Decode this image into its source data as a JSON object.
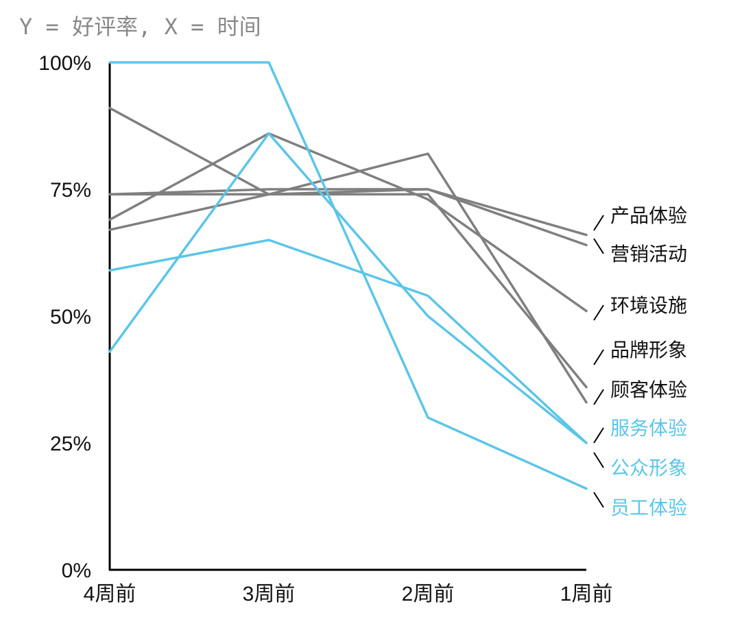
{
  "chart_data": {
    "type": "line",
    "title": "Y = 好评率, X = 时间",
    "xlabel": "时间",
    "ylabel": "好评率",
    "categories": [
      "4周前",
      "3周前",
      "2周前",
      "1周前"
    ],
    "y_ticks": [
      "0%",
      "25%",
      "50%",
      "75%",
      "100%"
    ],
    "ylim": [
      0,
      100
    ],
    "grid": false,
    "legend": "direct labels at right end of lines",
    "series": [
      {
        "name": "产品体验",
        "color": "#7f7f7f",
        "values": [
          67,
          74,
          75,
          66
        ]
      },
      {
        "name": "营销活动",
        "color": "#7f7f7f",
        "values": [
          74,
          75,
          75,
          64
        ]
      },
      {
        "name": "环境设施",
        "color": "#7f7f7f",
        "values": [
          69,
          86,
          73,
          51
        ]
      },
      {
        "name": "品牌形象",
        "color": "#7f7f7f",
        "values": [
          91,
          74,
          74,
          36
        ]
      },
      {
        "name": "顾客体验",
        "color": "#7f7f7f",
        "values": [
          74,
          74,
          82,
          33
        ]
      },
      {
        "name": "服务体验",
        "color": "#5bc5e8",
        "values": [
          100,
          100,
          30,
          16
        ]
      },
      {
        "name": "公众形象",
        "color": "#5bc5e8",
        "values": [
          43,
          86,
          50,
          25
        ]
      },
      {
        "name": "员工体验",
        "color": "#5bc5e8",
        "values": [
          59,
          65,
          54,
          25
        ]
      }
    ]
  }
}
